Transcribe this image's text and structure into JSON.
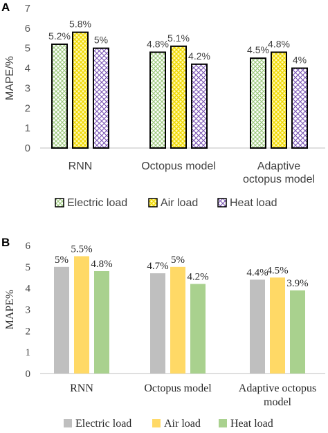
{
  "chart_data": [
    {
      "panel": "A",
      "type": "bar",
      "categories": [
        [
          "RNN"
        ],
        [
          "Octopus model"
        ],
        [
          "Adaptive",
          "octopus model"
        ]
      ],
      "ylabel": "MAPE/%",
      "ylim": [
        0,
        7
      ],
      "yticks": [
        0,
        1,
        2,
        3,
        4,
        5,
        6,
        7
      ],
      "grid": false,
      "legend_position": "bottom",
      "series": [
        {
          "name": "Electric load",
          "values": [
            5.2,
            4.8,
            4.5
          ],
          "labels": [
            "5.2%",
            "4.8%",
            "4.5%"
          ],
          "color": "#d3e9c0",
          "pattern": "checker"
        },
        {
          "name": "Air load",
          "values": [
            5.8,
            5.1,
            4.8
          ],
          "labels": [
            "5.8%",
            "5.1%",
            "4.8%"
          ],
          "color": "#fff27a",
          "pattern": "checker"
        },
        {
          "name": "Heat load",
          "values": [
            5.0,
            4.2,
            4.0
          ],
          "labels": [
            "5%",
            "4.2%",
            "4%"
          ],
          "color": "#7a54b4",
          "pattern": "diagonal"
        }
      ]
    },
    {
      "panel": "B",
      "type": "bar",
      "categories": [
        [
          "RNN"
        ],
        [
          "Octopus model"
        ],
        [
          "Adaptive octopus",
          "model"
        ]
      ],
      "ylabel": "MAPE%",
      "ylim": [
        0,
        6
      ],
      "yticks": [
        0,
        1,
        2,
        3,
        4,
        5,
        6
      ],
      "grid": false,
      "legend_position": "bottom",
      "series": [
        {
          "name": "Electric load",
          "values": [
            5.0,
            4.7,
            4.4
          ],
          "labels": [
            "5%",
            "4.7%",
            "4.4%"
          ],
          "color": "#bfbfbf"
        },
        {
          "name": "Air load",
          "values": [
            5.5,
            5.0,
            4.5
          ],
          "labels": [
            "5.5%",
            "5%",
            "4.5%"
          ],
          "color": "#ffd966"
        },
        {
          "name": "Heat load",
          "values": [
            4.8,
            4.2,
            3.9
          ],
          "labels": [
            "4.8%",
            "4.2%",
            "3.9%"
          ],
          "color": "#a9d18e"
        }
      ]
    }
  ]
}
